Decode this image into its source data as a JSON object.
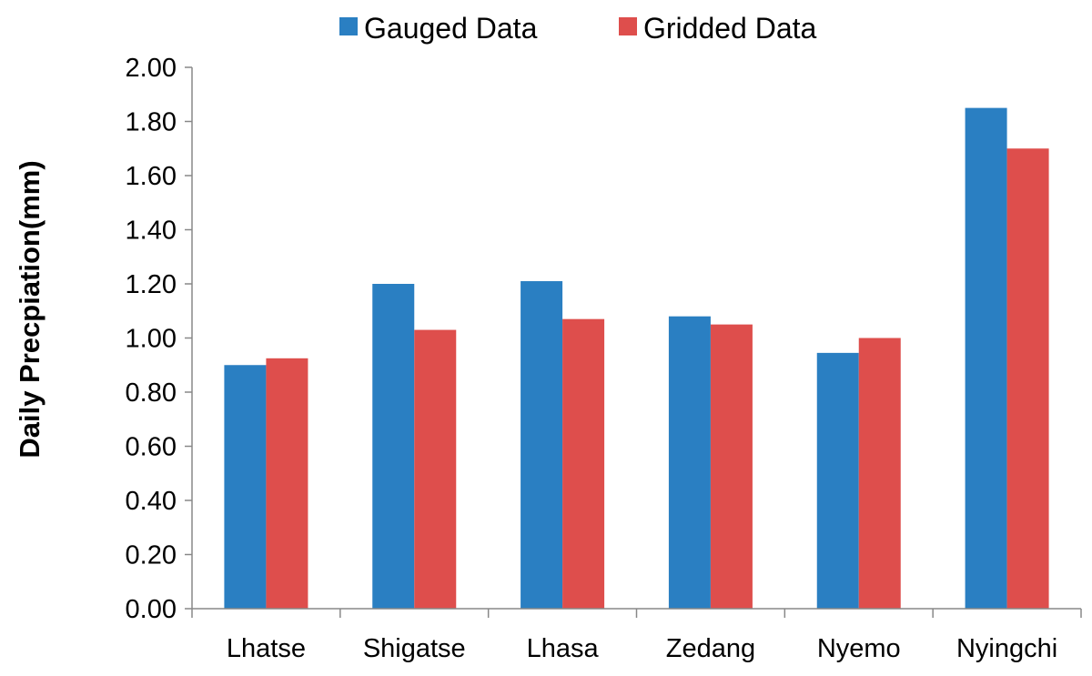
{
  "chart_data": {
    "type": "bar",
    "title": "",
    "xlabel": "",
    "ylabel": "Daily Precpiation(mm)",
    "categories": [
      "Lhatse",
      "Shigatse",
      "Lhasa",
      "Zedang",
      "Nyemo",
      "Nyingchi"
    ],
    "series": [
      {
        "name": "Gauged Data",
        "color": "#2a7fc2",
        "values": [
          0.9,
          1.2,
          1.21,
          1.08,
          0.945,
          1.85
        ]
      },
      {
        "name": "Gridded Data",
        "color": "#de4e4c",
        "values": [
          0.925,
          1.03,
          1.07,
          1.05,
          1.0,
          1.7
        ]
      }
    ],
    "ylim": [
      0,
      2.0
    ],
    "yticks": [
      "0.00",
      "0.20",
      "0.40",
      "0.60",
      "0.80",
      "1.00",
      "1.20",
      "1.40",
      "1.60",
      "1.80",
      "2.00"
    ],
    "grid": false,
    "legend_position": "top-center"
  }
}
